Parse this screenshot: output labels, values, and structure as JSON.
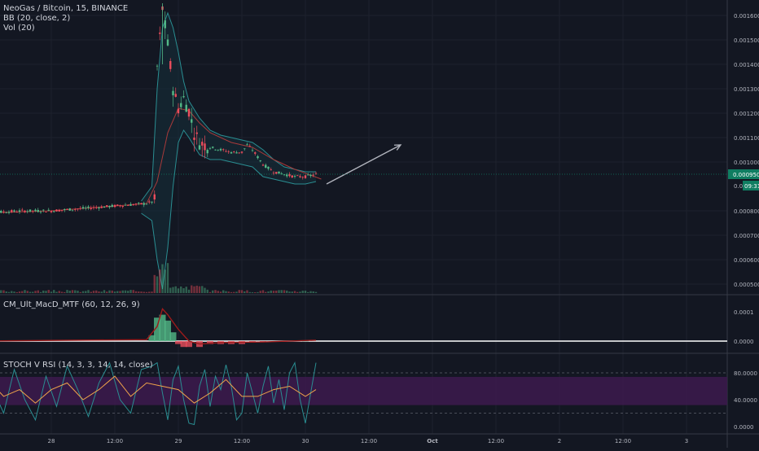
{
  "header": {
    "symbol_line": "NeoGas / Bitcoin, 15, BINANCE",
    "bb_label": "BB (20, close, 2)",
    "vol_label": "Vol (20)",
    "macd_label": "CM_Ult_MacD_MTF (60, 12, 26, 9)",
    "stoch_label": "STOCH V RSI (14, 3, 3, 14, 14, close)"
  },
  "colors": {
    "background": "#131722",
    "grid": "#1e222d",
    "up_candle": "#53b987",
    "down_candle": "#eb4d5c",
    "bb_band": "#2a8e92",
    "bb_fill": "#15303a",
    "ma_line": "#a83a3a",
    "current_price_box": "#0f7d61",
    "stoch_band": "#3b1a4b",
    "stoch_k": "#2a8e92",
    "stoch_d": "#f0a44a"
  },
  "current_price": {
    "label": "0.000950",
    "countdown": "09:31",
    "countdown_prefix": "0.0"
  },
  "chart_data": [
    {
      "type": "line",
      "name": "price",
      "ylim": [
        0.00045,
        0.00165
      ],
      "yticks": [
        "0.001600",
        "0.001500",
        "0.001400",
        "0.001300",
        "0.001200",
        "0.001100",
        "0.001000",
        "0.000800",
        "0.000700",
        "0.000600",
        "0.000500"
      ],
      "ytick_values": [
        0.0016,
        0.0015,
        0.0014,
        0.0013,
        0.0012,
        0.0011,
        0.001,
        0.0008,
        0.0007,
        0.0006,
        0.0005
      ],
      "xtick_labels": [
        "28",
        "12:00",
        "29",
        "12:00",
        "30",
        "12:00",
        "Oct",
        "12:00",
        "2",
        "12:00",
        "3"
      ],
      "xtick_hours": [
        0,
        12,
        24,
        36,
        48,
        60,
        72,
        84,
        96,
        108,
        120
      ],
      "price_path": [
        [
          -15,
          0.00079
        ],
        [
          -5,
          0.0008
        ],
        [
          0,
          0.0008
        ],
        [
          6,
          0.00081
        ],
        [
          12,
          0.00082
        ],
        [
          18,
          0.00083
        ],
        [
          19.5,
          0.00084
        ],
        [
          20,
          0.00139
        ],
        [
          21,
          0.00163
        ],
        [
          22,
          0.00148
        ],
        [
          23,
          0.0013
        ],
        [
          24,
          0.00122
        ],
        [
          25,
          0.00126
        ],
        [
          26,
          0.00121
        ],
        [
          27,
          0.00112
        ],
        [
          28,
          0.00108
        ],
        [
          30,
          0.00106
        ],
        [
          32,
          0.00105
        ],
        [
          34,
          0.00104
        ],
        [
          36,
          0.00104
        ],
        [
          37,
          0.00107
        ],
        [
          38,
          0.00105
        ],
        [
          40,
          0.00099
        ],
        [
          42,
          0.00096
        ],
        [
          44,
          0.00095
        ],
        [
          46,
          0.00094
        ],
        [
          48,
          0.00094
        ],
        [
          50,
          0.00095
        ]
      ],
      "bb_upper": [
        [
          17,
          0.00084
        ],
        [
          19,
          0.0009
        ],
        [
          20,
          0.0013
        ],
        [
          21,
          0.00155
        ],
        [
          22,
          0.00161
        ],
        [
          23,
          0.00155
        ],
        [
          24,
          0.00145
        ],
        [
          25,
          0.00133
        ],
        [
          26,
          0.00125
        ],
        [
          28,
          0.00118
        ],
        [
          30,
          0.00113
        ],
        [
          32,
          0.00111
        ],
        [
          34,
          0.0011
        ],
        [
          36,
          0.00109
        ],
        [
          38,
          0.00108
        ],
        [
          40,
          0.00105
        ],
        [
          42,
          0.00101
        ],
        [
          44,
          0.00098
        ],
        [
          46,
          0.00097
        ],
        [
          48,
          0.00096
        ],
        [
          50,
          0.00096
        ]
      ],
      "bb_lower": [
        [
          17,
          0.00079
        ],
        [
          19,
          0.00076
        ],
        [
          20,
          0.0006
        ],
        [
          21,
          0.00048
        ],
        [
          22,
          0.00065
        ],
        [
          23,
          0.0009
        ],
        [
          24,
          0.00108
        ],
        [
          25,
          0.00113
        ],
        [
          26,
          0.0011
        ],
        [
          28,
          0.00103
        ],
        [
          30,
          0.00101
        ],
        [
          32,
          0.00101
        ],
        [
          34,
          0.001
        ],
        [
          36,
          0.00099
        ],
        [
          38,
          0.00098
        ],
        [
          40,
          0.00094
        ],
        [
          42,
          0.00093
        ],
        [
          44,
          0.00092
        ],
        [
          46,
          0.00091
        ],
        [
          48,
          0.00091
        ],
        [
          50,
          0.00092
        ]
      ],
      "ma": [
        [
          -15,
          0.00079
        ],
        [
          0,
          0.0008
        ],
        [
          18,
          0.00083
        ],
        [
          20,
          0.00092
        ],
        [
          22,
          0.00112
        ],
        [
          24,
          0.00122
        ],
        [
          26,
          0.00121
        ],
        [
          28,
          0.00116
        ],
        [
          30,
          0.00112
        ],
        [
          34,
          0.00108
        ],
        [
          38,
          0.00106
        ],
        [
          42,
          0.00101
        ],
        [
          46,
          0.00097
        ],
        [
          51,
          0.00093
        ]
      ],
      "arrow": {
        "from": [
          52,
          0.00091
        ],
        "to": [
          66,
          0.00107
        ]
      }
    },
    {
      "type": "bar",
      "name": "macd",
      "ylim": [
        -6e-05,
        0.00014
      ],
      "yticks": [
        "0.0001",
        "0.0000"
      ],
      "ytick_values": [
        0.0001,
        0.0
      ],
      "histogram": [
        [
          19,
          2e-05
        ],
        [
          20,
          8e-05
        ],
        [
          21,
          9e-05
        ],
        [
          22,
          7e-05
        ],
        [
          23,
          3e-05
        ],
        [
          24,
          -1e-05
        ],
        [
          25,
          -2e-05
        ],
        [
          26,
          -2e-05
        ],
        [
          28,
          -2e-05
        ],
        [
          30,
          -1e-05
        ],
        [
          32,
          -1e-05
        ],
        [
          34,
          -1e-05
        ],
        [
          36,
          -1e-05
        ],
        [
          38,
          -5e-06
        ],
        [
          40,
          -3e-06
        ],
        [
          44,
          -2e-06
        ],
        [
          48,
          2e-06
        ]
      ],
      "signal": [
        [
          -15,
          0.0
        ],
        [
          18,
          5e-06
        ],
        [
          20,
          5e-05
        ],
        [
          21,
          0.00011
        ],
        [
          22,
          9e-05
        ],
        [
          24,
          4e-05
        ],
        [
          26,
          0.0
        ],
        [
          28,
          -1e-05
        ],
        [
          32,
          -5e-06
        ],
        [
          40,
          -3e-06
        ],
        [
          50,
          3e-06
        ]
      ]
    },
    {
      "type": "line",
      "name": "stoch_rsi",
      "ylim": [
        -5,
        100
      ],
      "yticks": [
        "80.0000",
        "40.0000",
        "0.0000"
      ],
      "ytick_values": [
        80,
        40,
        0
      ],
      "band": [
        32,
        74
      ],
      "k": [
        [
          -15,
          70
        ],
        [
          -13,
          95
        ],
        [
          -11,
          55
        ],
        [
          -9,
          20
        ],
        [
          -7,
          85
        ],
        [
          -5,
          40
        ],
        [
          -3,
          10
        ],
        [
          -1,
          75
        ],
        [
          1,
          30
        ],
        [
          3,
          90
        ],
        [
          5,
          55
        ],
        [
          7,
          15
        ],
        [
          9,
          65
        ],
        [
          11,
          95
        ],
        [
          13,
          40
        ],
        [
          15,
          20
        ],
        [
          17,
          85
        ],
        [
          19,
          90
        ],
        [
          20,
          95
        ],
        [
          21,
          50
        ],
        [
          22,
          10
        ],
        [
          23,
          70
        ],
        [
          24,
          90
        ],
        [
          25,
          40
        ],
        [
          26,
          5
        ],
        [
          27,
          3
        ],
        [
          28,
          60
        ],
        [
          29,
          85
        ],
        [
          30,
          30
        ],
        [
          31,
          75
        ],
        [
          32,
          55
        ],
        [
          33,
          92
        ],
        [
          34,
          60
        ],
        [
          35,
          10
        ],
        [
          36,
          20
        ],
        [
          37,
          80
        ],
        [
          38,
          50
        ],
        [
          39,
          20
        ],
        [
          40,
          60
        ],
        [
          41,
          90
        ],
        [
          42,
          35
        ],
        [
          43,
          70
        ],
        [
          44,
          25
        ],
        [
          45,
          80
        ],
        [
          46,
          95
        ],
        [
          47,
          40
        ],
        [
          48,
          5
        ],
        [
          49,
          50
        ],
        [
          50,
          95
        ]
      ],
      "d": [
        [
          -15,
          65
        ],
        [
          -12,
          70
        ],
        [
          -9,
          45
        ],
        [
          -6,
          55
        ],
        [
          -3,
          35
        ],
        [
          0,
          55
        ],
        [
          3,
          65
        ],
        [
          6,
          40
        ],
        [
          9,
          55
        ],
        [
          12,
          75
        ],
        [
          15,
          45
        ],
        [
          18,
          65
        ],
        [
          21,
          60
        ],
        [
          24,
          55
        ],
        [
          27,
          35
        ],
        [
          30,
          50
        ],
        [
          33,
          70
        ],
        [
          36,
          45
        ],
        [
          39,
          45
        ],
        [
          42,
          55
        ],
        [
          45,
          60
        ],
        [
          48,
          45
        ],
        [
          50,
          55
        ]
      ]
    }
  ]
}
